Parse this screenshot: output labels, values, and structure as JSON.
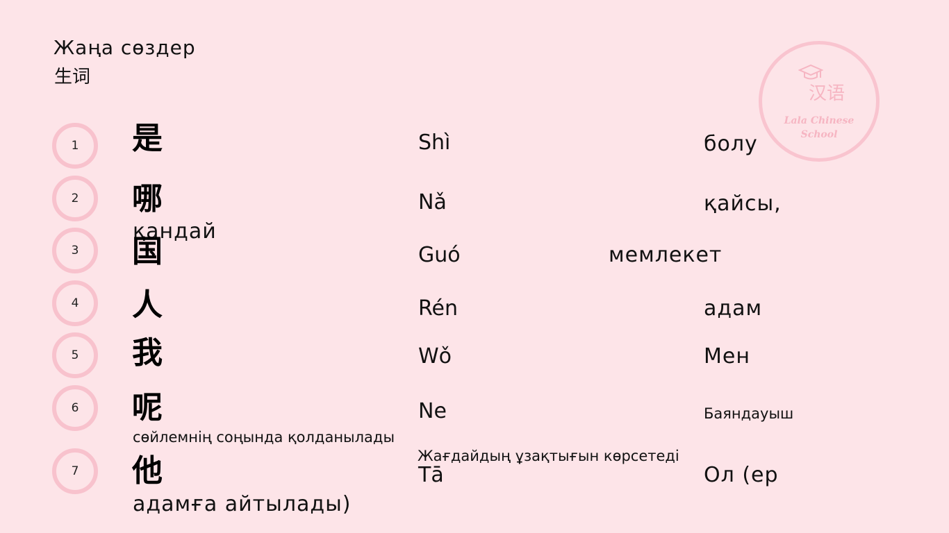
{
  "header": {
    "title": "Жаңа сөздер",
    "subtitle": "生词"
  },
  "logo": {
    "chinese": "汉语",
    "english": "Lala Chinese School",
    "cap_icon": "graduation-cap-icon"
  },
  "colors": {
    "background": "#fde4e8",
    "circle": "#f8c2cd"
  },
  "words": [
    {
      "num": "1",
      "hanzi": "是",
      "pinyin": "Shì",
      "meaning": "болу"
    },
    {
      "num": "2",
      "hanzi": "哪",
      "pinyin": "Nǎ",
      "meaning": "қайсы,",
      "meaning_cont": "қандай"
    },
    {
      "num": "3",
      "hanzi": "国",
      "pinyin": "Guó",
      "meaning": "мемлекет"
    },
    {
      "num": "4",
      "hanzi": "人",
      "pinyin": "Rén",
      "meaning": "адам"
    },
    {
      "num": "5",
      "hanzi": "我",
      "pinyin": "Wǒ",
      "meaning": "Мен"
    },
    {
      "num": "6",
      "hanzi": "呢",
      "pinyin": "Ne",
      "meaning": "Баяндауыш",
      "meaning_cont": "сөйлемнің соңында қолданылады",
      "note": "Жағдайдың ұзақтығын көрсетеді"
    },
    {
      "num": "7",
      "hanzi": "他",
      "pinyin": "Tā",
      "meaning": "Ол (ер",
      "meaning_cont": "адамға айтылады)"
    }
  ]
}
